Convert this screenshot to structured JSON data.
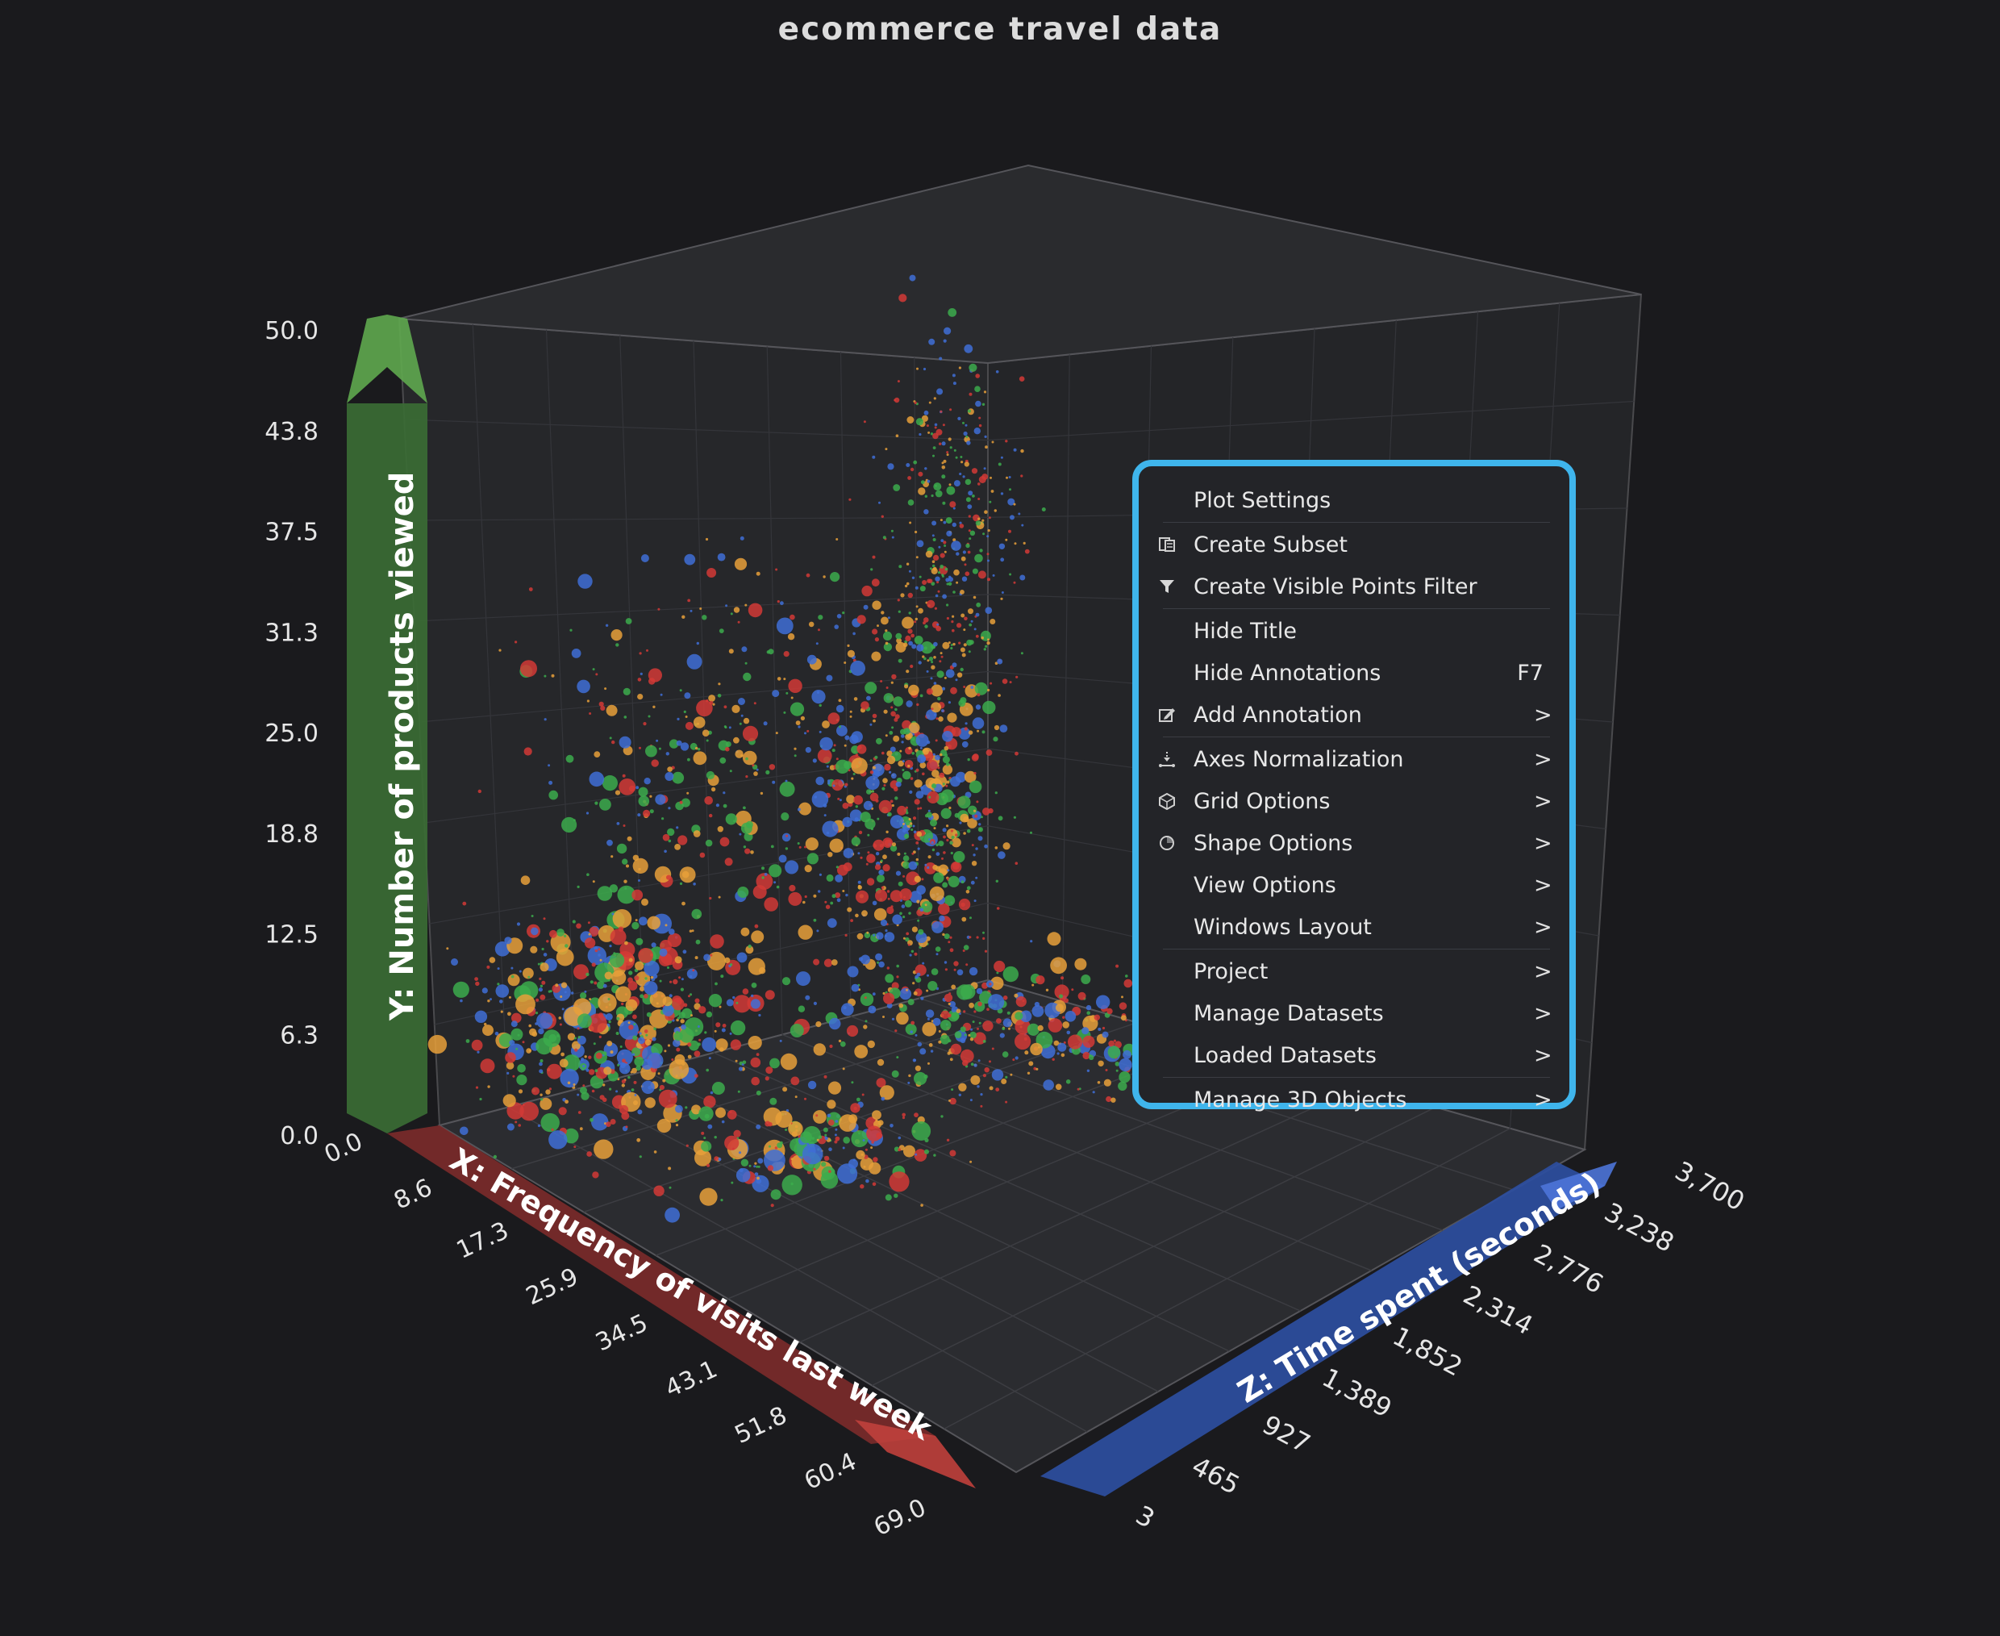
{
  "title": "ecommerce travel data",
  "chart_data": {
    "type": "scatter",
    "dimensions": "3d",
    "title": "ecommerce travel data",
    "x_axis": {
      "label": "X: Frequency of visits last week",
      "ticks": [
        "0.0",
        "8.6",
        "17.3",
        "25.9",
        "34.5",
        "43.1",
        "51.8",
        "60.4",
        "69.0"
      ],
      "range": [
        0,
        69
      ],
      "color": "#7a2a2a"
    },
    "y_axis": {
      "label": "Y: Number of products viewed",
      "ticks": [
        "0.0",
        "6.3",
        "12.5",
        "18.8",
        "25.0",
        "31.3",
        "37.5",
        "43.8",
        "50.0"
      ],
      "range": [
        0,
        50
      ],
      "color": "#3a6b34"
    },
    "z_axis": {
      "label": "Z: Time spent (seconds)",
      "ticks": [
        "3",
        "465",
        "927",
        "1,389",
        "1,852",
        "2,314",
        "2,776",
        "3,238",
        "3,700"
      ],
      "range": [
        3,
        3700
      ],
      "color": "#2c4ea0"
    },
    "point_colors": [
      "#d23a36",
      "#e8a03a",
      "#3cab4c",
      "#3f6fd6"
    ],
    "grid": true
  },
  "context_menu": {
    "items": [
      {
        "label": "Plot Settings",
        "icon": "",
        "shortcut": "",
        "submenu": false,
        "separator_after": true
      },
      {
        "label": "Create Subset",
        "icon": "subset-icon",
        "shortcut": "",
        "submenu": false,
        "separator_after": false
      },
      {
        "label": "Create Visible Points Filter",
        "icon": "filter-icon",
        "shortcut": "",
        "submenu": false,
        "separator_after": true
      },
      {
        "label": "Hide Title",
        "icon": "",
        "shortcut": "",
        "submenu": false,
        "separator_after": false
      },
      {
        "label": "Hide Annotations",
        "icon": "",
        "shortcut": "F7",
        "submenu": false,
        "separator_after": false
      },
      {
        "label": "Add Annotation",
        "icon": "annotation-icon",
        "shortcut": "",
        "submenu": true,
        "separator_after": true
      },
      {
        "label": "Axes Normalization",
        "icon": "axes-icon",
        "shortcut": "",
        "submenu": true,
        "separator_after": false
      },
      {
        "label": "Grid Options",
        "icon": "grid-icon",
        "shortcut": "",
        "submenu": true,
        "separator_after": false
      },
      {
        "label": "Shape Options",
        "icon": "shape-icon",
        "shortcut": "",
        "submenu": true,
        "separator_after": false
      },
      {
        "label": "View Options",
        "icon": "",
        "shortcut": "",
        "submenu": true,
        "separator_after": false
      },
      {
        "label": "Windows Layout",
        "icon": "",
        "shortcut": "",
        "submenu": true,
        "separator_after": true
      },
      {
        "label": "Project",
        "icon": "",
        "shortcut": "",
        "submenu": true,
        "separator_after": false
      },
      {
        "label": "Manage Datasets",
        "icon": "",
        "shortcut": "",
        "submenu": true,
        "separator_after": false
      },
      {
        "label": "Loaded Datasets",
        "icon": "",
        "shortcut": "",
        "submenu": true,
        "separator_after": true
      },
      {
        "label": "Manage 3D Objects",
        "icon": "",
        "shortcut": "",
        "submenu": true,
        "separator_after": false
      }
    ],
    "submenu_glyph": ">",
    "accent": "#3fb5ec"
  }
}
